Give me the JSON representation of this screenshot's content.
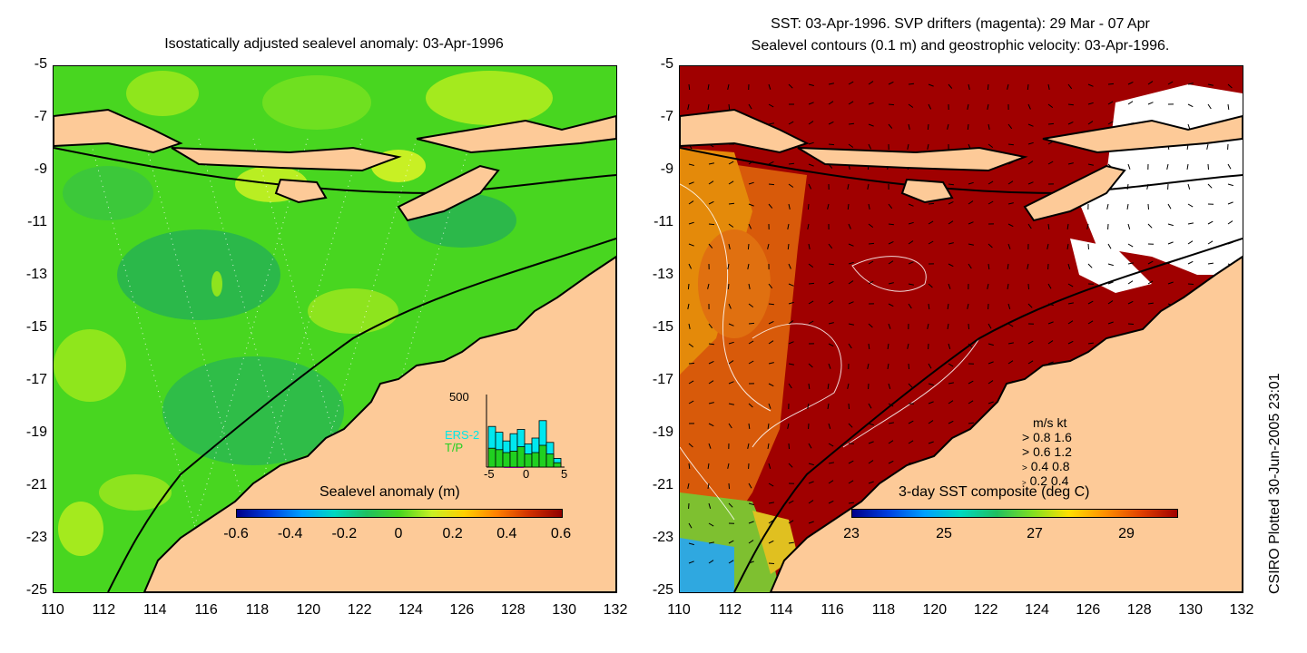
{
  "left_panel": {
    "title": "Isostatically adjusted sealevel anomaly: 03-Apr-1996",
    "colorbar": {
      "label": "Sealevel anomaly (m)",
      "ticks": [
        "-0.6",
        "-0.4",
        "-0.2",
        "0",
        "0.2",
        "0.4",
        "0.6"
      ]
    },
    "histogram": {
      "ymax_label": "500",
      "labels": [
        "ERS-2",
        "T/P"
      ],
      "ticks": [
        "-5",
        "0",
        "5"
      ],
      "ers2_values": [
        280,
        240,
        180,
        230,
        260,
        160,
        200,
        320,
        170,
        60
      ],
      "tp_values": [
        130,
        120,
        100,
        110,
        140,
        90,
        100,
        150,
        90,
        30
      ],
      "ymax": 500
    }
  },
  "right_panel": {
    "title_line1": "SST: 03-Apr-1996. SVP drifters (magenta): 29 Mar - 07 Apr",
    "title_line2": "Sealevel contours (0.1 m) and geostrophic velocity: 03-Apr-1996.",
    "colorbar": {
      "label": "3-day SST composite (deg C)",
      "ticks": [
        "23",
        "25",
        "27",
        "29"
      ]
    },
    "velocity_legend": {
      "header": "m/s  kt",
      "rows": [
        "0.8  1.6",
        "0.6  1.2",
        "0.4  0.8",
        "0.2  0.4"
      ]
    }
  },
  "axes": {
    "y_ticks": [
      "-5",
      "-7",
      "-9",
      "-11",
      "-13",
      "-15",
      "-17",
      "-19",
      "-21",
      "-23",
      "-25"
    ],
    "x_ticks": [
      "110",
      "112",
      "114",
      "116",
      "118",
      "120",
      "122",
      "124",
      "126",
      "128",
      "130",
      "132"
    ]
  },
  "side_note": "CSIRO Plotted 30-Jun-2005 23:01",
  "colors": {
    "land": "#fdca98",
    "ocean_green": "#48d620",
    "sst_hot": "#a00000",
    "sst_warm": "#d85a0a"
  }
}
